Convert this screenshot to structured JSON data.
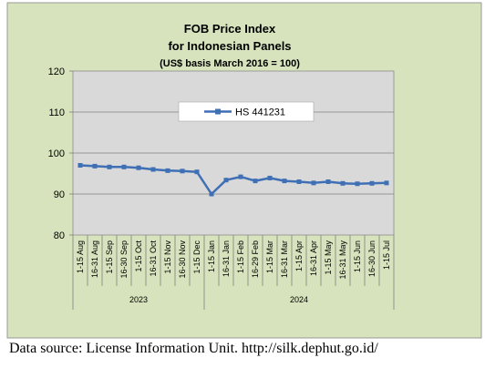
{
  "chart_data": {
    "type": "line",
    "title": [
      "FOB Price Index",
      "for Indonesian Panels",
      "(US$ basis March 2016 = 100)"
    ],
    "categories": [
      "1-15 Aug",
      "16-31 Aug",
      "1-15 Sep",
      "16-30 Sep",
      "1-15 Oct",
      "16-31 Oct",
      "1-15 Nov",
      "16-30 Nov",
      "1-15 Dec",
      "1-15 Jan",
      "16-31 Jan",
      "1-15 Feb",
      "16-29 Feb",
      "1-15 Mar",
      "16-31 Mar",
      "1-15 Apr",
      "16-31 Apr",
      "1-15 May",
      "16-31 May",
      "1-15 Jun",
      "16-30 Jun",
      "1-15 Jul"
    ],
    "groups": [
      {
        "label": "2023",
        "count": 9
      },
      {
        "label": "2024",
        "count": 13
      }
    ],
    "series": [
      {
        "name": "HS 441231",
        "color": "#3f6fb5",
        "values": [
          97.0,
          96.8,
          96.6,
          96.6,
          96.4,
          96.0,
          95.7,
          95.6,
          95.4,
          90.0,
          93.4,
          94.2,
          93.2,
          93.9,
          93.2,
          93.0,
          92.7,
          93.0,
          92.6,
          92.5,
          92.6,
          92.7
        ]
      }
    ],
    "yticks": [
      "80",
      "90",
      "100",
      "110",
      "120"
    ],
    "ylim": [
      80,
      120
    ],
    "grid": true,
    "legend_position": "top-center",
    "plot_background": "#d9d9d9",
    "frame_background": "#d6e3bc"
  },
  "footer": {
    "source": "Data source: License Information Unit. http://silk.dephut.go.id/"
  }
}
